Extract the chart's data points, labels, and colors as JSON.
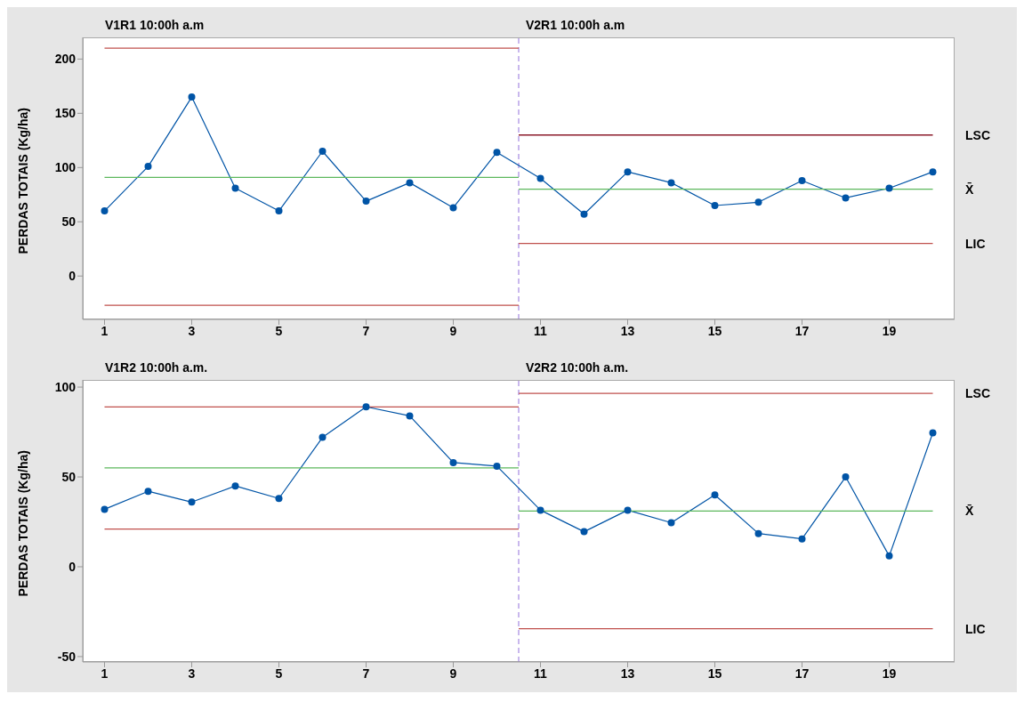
{
  "chart_data": [
    {
      "type": "line",
      "annotations": [
        "V1R1 10:00h a.m",
        "V2R1 10:00h a.m"
      ],
      "ylabel": "PERDAS TOTAIS (Kg/ha)",
      "xlim": [
        0.5,
        20.5
      ],
      "xticks": [
        1,
        3,
        5,
        7,
        9,
        11,
        13,
        15,
        17,
        19
      ],
      "ylim": [
        -40,
        220
      ],
      "yticks": [
        0,
        50,
        100,
        150,
        200
      ],
      "ref_lines": [
        {
          "axis": "x",
          "value": 10.5,
          "color": "#9370db",
          "line_style": "dashed"
        }
      ],
      "series": [
        {
          "color": "#0054a6",
          "marker": "circle",
          "x": [
            1,
            2,
            3,
            4,
            5,
            6,
            7,
            8,
            9,
            10,
            11,
            12,
            13,
            14,
            15,
            16,
            17,
            18,
            19,
            20
          ],
          "values": [
            60,
            101,
            165,
            81,
            60,
            115,
            69,
            86,
            63,
            114,
            90,
            57,
            96,
            86,
            65,
            68,
            88,
            72,
            81,
            96
          ]
        },
        {
          "color": "#c0504d",
          "marker": "none",
          "x": [
            1,
            10.5
          ],
          "values": [
            210,
            210
          ]
        },
        {
          "color": "#5cb85c",
          "marker": "none",
          "x": [
            1,
            10.5
          ],
          "values": [
            91,
            91
          ]
        },
        {
          "color": "#c0504d",
          "marker": "none",
          "x": [
            1,
            10.5
          ],
          "values": [
            -27,
            -27
          ]
        },
        {
          "name": "LSC",
          "color": "#8b1a2b",
          "marker": "none",
          "x": [
            10.5,
            20
          ],
          "values": [
            130,
            130
          ]
        },
        {
          "name": "X̄",
          "color": "#5cb85c",
          "marker": "none",
          "x": [
            10.5,
            20
          ],
          "values": [
            80,
            80
          ]
        },
        {
          "name": "LIC",
          "color": "#c0504d",
          "marker": "none",
          "x": [
            10.5,
            20
          ],
          "values": [
            30,
            30
          ]
        }
      ]
    },
    {
      "type": "line",
      "annotations": [
        "V1R2 10:00h a.m.",
        "V2R2 10:00h a.m."
      ],
      "ylabel": "PERDAS TOTAIS (Kg/ha)",
      "xlim": [
        0.5,
        20.5
      ],
      "xticks": [
        1,
        3,
        5,
        7,
        9,
        11,
        13,
        15,
        17,
        19
      ],
      "ylim": [
        -53,
        104
      ],
      "yticks": [
        -50,
        0,
        50,
        100
      ],
      "ref_lines": [
        {
          "axis": "x",
          "value": 10.5,
          "color": "#9370db",
          "line_style": "dashed"
        }
      ],
      "series": [
        {
          "color": "#0054a6",
          "marker": "circle",
          "x": [
            1,
            2,
            3,
            4,
            5,
            6,
            7,
            8,
            9,
            10,
            11,
            12,
            13,
            14,
            15,
            16,
            17,
            18,
            19,
            20
          ],
          "values": [
            32,
            42,
            36,
            45,
            38,
            72,
            89,
            84,
            58,
            56,
            31.5,
            19.5,
            31.5,
            24.5,
            40,
            18.5,
            15.5,
            50,
            6,
            74.5
          ]
        },
        {
          "color": "#c0504d",
          "marker": "none",
          "x": [
            1,
            10.5
          ],
          "values": [
            89,
            89
          ]
        },
        {
          "color": "#5cb85c",
          "marker": "none",
          "x": [
            1,
            10.5
          ],
          "values": [
            55,
            55
          ]
        },
        {
          "color": "#c0504d",
          "marker": "none",
          "x": [
            1,
            10.5
          ],
          "values": [
            21,
            21
          ]
        },
        {
          "name": "LSC",
          "color": "#c0504d",
          "marker": "none",
          "x": [
            10.5,
            20
          ],
          "values": [
            96.5,
            96.5
          ]
        },
        {
          "name": "X̄",
          "color": "#5cb85c",
          "marker": "none",
          "x": [
            10.5,
            20
          ],
          "values": [
            31,
            31
          ]
        },
        {
          "name": "LIC",
          "color": "#c0504d",
          "marker": "none",
          "x": [
            10.5,
            20
          ],
          "values": [
            -34.5,
            -34.5
          ]
        }
      ]
    }
  ]
}
